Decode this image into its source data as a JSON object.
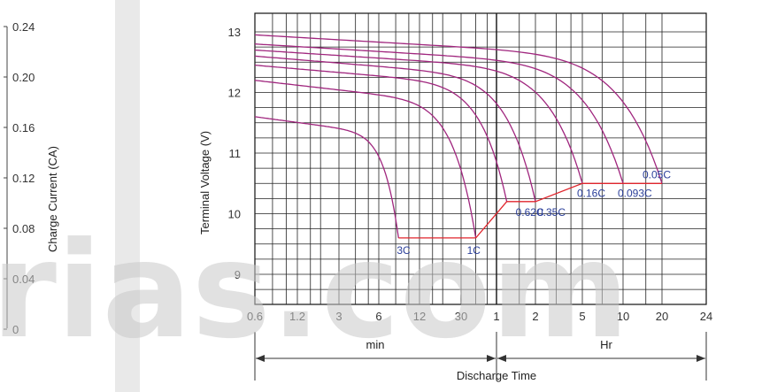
{
  "left_panel": {
    "ylabel": "Charge Current (CA)",
    "ticks": [
      "0.24",
      "0.20",
      "0.16",
      "0.12",
      "0.08",
      "0.04",
      "0"
    ]
  },
  "watermark": "rias.com",
  "chart_data": {
    "type": "line",
    "title": "",
    "ylabel": "Terminal Voltage  (V)",
    "xlabel": "Discharge Time",
    "ylim": [
      8.5,
      13.25
    ],
    "x_ticks": [
      "0.6",
      "1.2",
      "3",
      "6",
      "12",
      "30",
      "1",
      "2",
      "5",
      "10",
      "20",
      "24"
    ],
    "y_ticks": [
      "13",
      "12",
      "11",
      "10",
      "9"
    ],
    "x_groups": [
      {
        "label": "min",
        "range": [
          "0.6 min",
          "60 min"
        ]
      },
      {
        "label": "Hr",
        "range": [
          "1 Hr",
          "24 Hr"
        ]
      }
    ],
    "grid": true,
    "series": [
      {
        "name": "3C",
        "initial_voltage": 11.6,
        "end_time": "8.4 min",
        "end_voltage": 9.6,
        "color": "#a0267e"
      },
      {
        "name": "1C",
        "initial_voltage": 12.2,
        "end_time": "40 min",
        "end_voltage": 9.6,
        "color": "#a0267e"
      },
      {
        "name": "0.62C",
        "initial_voltage": 12.45,
        "end_time": "1.2 Hr",
        "end_voltage": 10.2,
        "color": "#a0267e"
      },
      {
        "name": "0.35C",
        "initial_voltage": 12.6,
        "end_time": "2 Hr",
        "end_voltage": 10.2,
        "color": "#a0267e"
      },
      {
        "name": "0.16C",
        "initial_voltage": 12.7,
        "end_time": "5 Hr",
        "end_voltage": 10.5,
        "color": "#a0267e"
      },
      {
        "name": "0.093C",
        "initial_voltage": 12.8,
        "end_time": "10 Hr",
        "end_voltage": 10.5,
        "color": "#a0267e"
      },
      {
        "name": "0.05C",
        "initial_voltage": 12.95,
        "end_time": "20 Hr",
        "end_voltage": 10.5,
        "color": "#a0267e"
      }
    ],
    "cutoff_line": {
      "color": "#e0262d",
      "points": [
        {
          "x": "8.4 min",
          "y": 9.6
        },
        {
          "x": "40 min",
          "y": 9.6
        },
        {
          "x": "1.2 Hr",
          "y": 10.2
        },
        {
          "x": "2 Hr",
          "y": 10.2
        },
        {
          "x": "5 Hr",
          "y": 10.5
        },
        {
          "x": "20 Hr",
          "y": 10.5
        }
      ]
    }
  }
}
